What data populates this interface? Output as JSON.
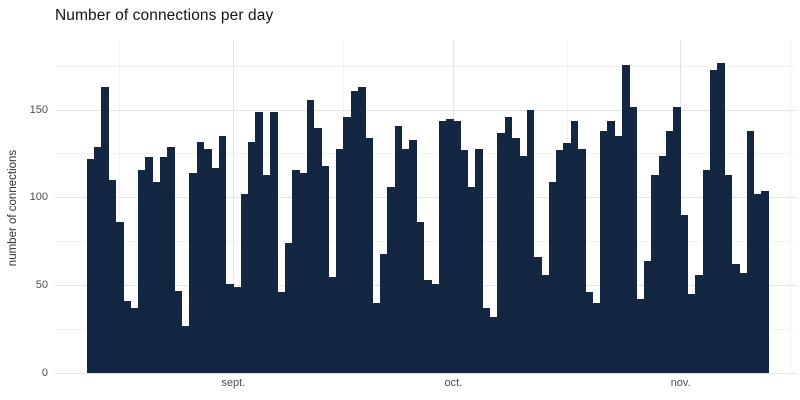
{
  "chart_data": {
    "type": "bar",
    "title": "Number of connections per day",
    "ylabel": "number of connections",
    "xlabel": "",
    "x_unit": "day",
    "n_days": 93,
    "values": [
      122,
      129,
      163,
      110,
      86,
      41,
      37,
      116,
      123,
      109,
      123,
      129,
      47,
      27,
      114,
      132,
      128,
      117,
      135,
      51,
      49,
      102,
      132,
      149,
      113,
      149,
      46,
      74,
      116,
      114,
      156,
      140,
      118,
      55,
      128,
      146,
      161,
      163,
      134,
      40,
      68,
      106,
      141,
      128,
      133,
      86,
      53,
      51,
      144,
      145,
      144,
      127,
      106,
      128,
      37,
      32,
      137,
      146,
      134,
      124,
      150,
      66,
      56,
      109,
      127,
      131,
      144,
      128,
      46,
      40,
      138,
      144,
      135,
      176,
      152,
      42,
      64,
      113,
      124,
      138,
      152,
      90,
      45,
      56,
      116,
      173,
      177,
      113,
      62,
      57,
      138,
      102,
      104
    ],
    "x_tick_labels": [
      {
        "label": "sept.",
        "day_index": 20
      },
      {
        "label": "oct.",
        "day_index": 50
      },
      {
        "label": "nov.",
        "day_index": 81
      }
    ],
    "x_minor_tick_day_indices": [
      4.5,
      35,
      65.5,
      96
    ],
    "yticks": [
      0,
      50,
      100,
      150
    ],
    "y_minor_ticks": [
      25,
      75,
      125,
      175
    ],
    "ylim": [
      0,
      190
    ],
    "grid": true,
    "legend": "none",
    "colors": {
      "bar": "#132642",
      "grid_major": "#e4e4e4",
      "grid_minor": "#f1f1f1",
      "axis_text": "#4d4d4d",
      "title_text": "#141414",
      "background": "#ffffff"
    }
  }
}
